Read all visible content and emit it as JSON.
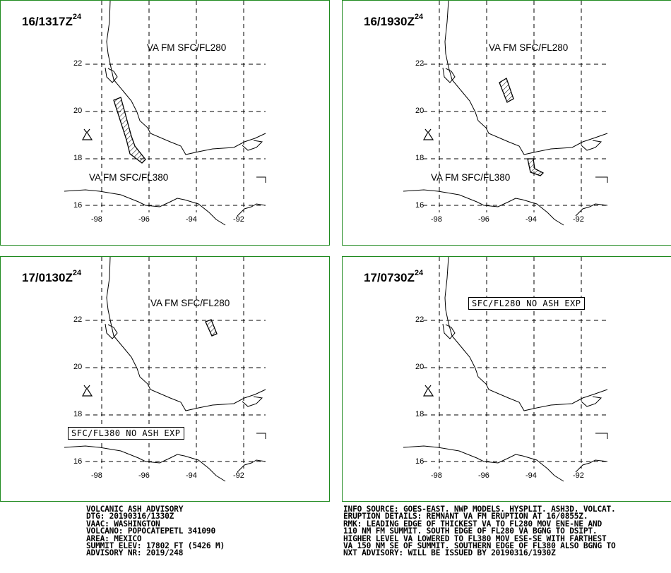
{
  "panels": [
    {
      "title": "16/1317Z",
      "sup": "24",
      "labels": [
        {
          "text": "VA FM SFC/FL280",
          "boxed": false
        },
        {
          "text": "VA FM SFC/FL380",
          "boxed": false
        }
      ]
    },
    {
      "title": "16/1930Z",
      "sup": "24",
      "labels": [
        {
          "text": "VA FM SFC/FL280",
          "boxed": false
        },
        {
          "text": "VA FM SFC/FL380",
          "boxed": false
        }
      ]
    },
    {
      "title": "17/0130Z",
      "sup": "24",
      "labels": [
        {
          "text": "VA FM SFC/FL280",
          "boxed": false
        },
        {
          "text": "SFC/FL380 NO ASH EXP",
          "boxed": true
        }
      ]
    },
    {
      "title": "17/0730Z",
      "sup": "24",
      "labels": [
        {
          "text": "SFC/FL280 NO ASH EXP",
          "boxed": true
        }
      ]
    }
  ],
  "axes": {
    "lat_ticks": [
      "22",
      "20",
      "18",
      "16"
    ],
    "lon_ticks": [
      "-98",
      "-96",
      "-94",
      "-92"
    ]
  },
  "advisory_left": [
    "VOLCANIC ASH ADVISORY",
    "DTG: 20190316/1330Z",
    "VAAC: WASHINGTON",
    "VOLCANO: POPOCATEPETL 341090",
    "AREA: MEXICO",
    "SUMMIT ELEV: 17802 FT (5426 M)",
    "ADVISORY NR: 2019/248"
  ],
  "advisory_right": [
    "INFO SOURCE: GOES-EAST. NWP MODELS. HYSPLIT. ASH3D. VOLCAT.",
    "ERUPTION DETAILS: REMNANT VA FM ERUPTION AT 16/0855Z.",
    "RMK: LEADING EDGE OF THICKEST VA TO FL280 MOV ENE-NE AND",
    "110 NM FM SUMMIT. SOUTH EDGE OF FL280 VA BGNG TO DSIPT.",
    "HIGHER LEVEL VA LOWERED TO FL380 MOV ESE-SE WITH FARTHEST",
    "VA 150 NM SE OF SUMMIT. SOUTHERN EDGE OF FL380 ALSO BGNG TO",
    "NXT ADVISORY: WILL BE ISSUED BY 20190316/1930Z"
  ],
  "colors": {
    "border": "#1f8a1f",
    "ink": "#000000"
  },
  "icons": {
    "volcano": "volcano-icon"
  }
}
